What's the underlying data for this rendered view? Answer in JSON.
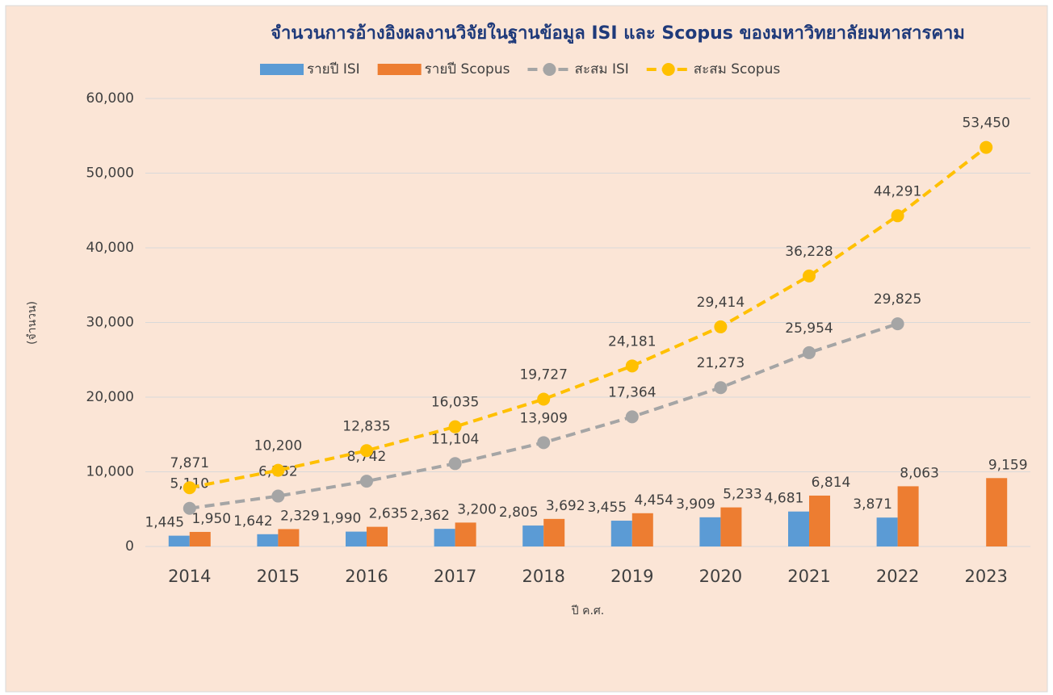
{
  "chart_data": {
    "type": "combo",
    "title": "จำนวนการอ้างอิงผลงานวิจัยในฐานข้อมูล ISI และ Scopus ของมหาวิทยาลัยมหาสารคาม",
    "x_label": "ปี ค.ศ.",
    "y_label": "(จำนวน)",
    "categories": [
      "2014",
      "2015",
      "2016",
      "2017",
      "2018",
      "2019",
      "2020",
      "2021",
      "2022",
      "2023"
    ],
    "ylim": [
      0,
      60000
    ],
    "yticks": [
      0,
      {
        "value": 10000,
        "label": "10,000"
      },
      {
        "value": 20000,
        "label": "20,000"
      },
      {
        "value": 30000,
        "label": "30,000"
      },
      {
        "value": 40000,
        "label": "40,000"
      },
      {
        "value": 50000,
        "label": "50,000"
      },
      {
        "value": 60000,
        "label": "60,000"
      }
    ],
    "grid": true,
    "legend": "top",
    "series": [
      {
        "name": "รายปี ISI",
        "type": "bar",
        "color": "#5b9bd5",
        "values": [
          1445,
          1642,
          1990,
          2362,
          2805,
          3455,
          3909,
          4681,
          3871,
          null
        ],
        "value_labels": [
          "1,445",
          "1,642",
          "1,990",
          "2,362",
          "2,805",
          "3,455",
          "3,909",
          "4,681",
          "3,871",
          null
        ]
      },
      {
        "name": "รายปี Scopus",
        "type": "bar",
        "color": "#ed7d31",
        "values": [
          1950,
          2329,
          2635,
          3200,
          3692,
          4454,
          5233,
          6814,
          8063,
          9159
        ],
        "value_labels": [
          "1,950",
          "2,329",
          "2,635",
          "3,200",
          "3,692",
          "4,454",
          "5,233",
          "6,814",
          "8,063",
          "9,159"
        ]
      },
      {
        "name": "สะสม ISI",
        "type": "line",
        "color": "#a5a5a5",
        "dashed": true,
        "values": [
          5110,
          6752,
          8742,
          11104,
          13909,
          17364,
          21273,
          25954,
          29825,
          null
        ],
        "value_labels": [
          "5,110",
          "6,752",
          "8,742",
          "11,104",
          "13,909",
          "17,364",
          "21,273",
          "25,954",
          "29,825",
          null
        ]
      },
      {
        "name": "สะสม Scopus",
        "type": "line",
        "color": "#ffc000",
        "dashed": true,
        "values": [
          7871,
          10200,
          12835,
          16035,
          19727,
          24181,
          29414,
          36228,
          44291,
          53450
        ],
        "value_labels": [
          "7,871",
          "10,200",
          "12,835",
          "16,035",
          "19,727",
          "24,181",
          "29,414",
          "36,228",
          "44,291",
          "53,450"
        ]
      }
    ]
  }
}
